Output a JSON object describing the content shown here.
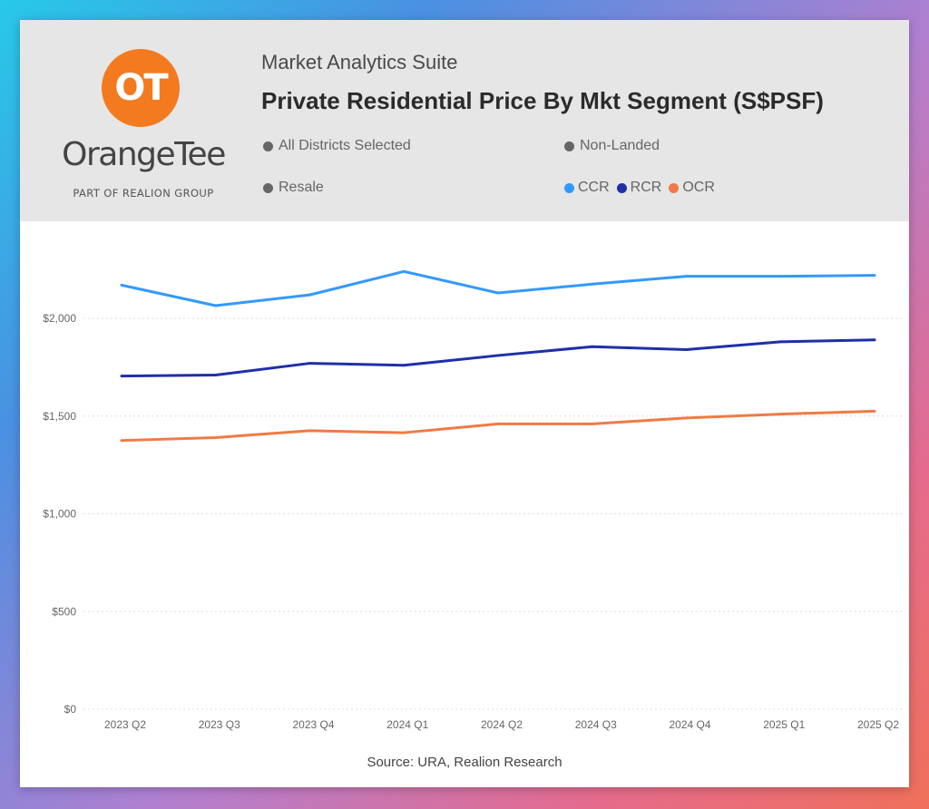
{
  "logo": {
    "monogram": "OT",
    "brand": "OrangeTee",
    "tagline": "PART OF REALION GROUP"
  },
  "header": {
    "suite": "Market Analytics Suite",
    "title": "Private Residential Price By Mkt Segment (S$PSF)"
  },
  "filters": {
    "districts": "All Districts Selected",
    "property_type": "Non-Landed",
    "sale_type": "Resale"
  },
  "colors": {
    "ccr": "#3399ff",
    "rcr": "#1f2fa8",
    "ocr": "#f07a45",
    "grid": "#dddddd"
  },
  "chart_data": {
    "type": "line",
    "title": "Private Residential Price By Mkt Segment (S$PSF)",
    "categories": [
      "2023 Q2",
      "2023 Q3",
      "2023 Q4",
      "2024 Q1",
      "2024 Q2",
      "2024 Q3",
      "2024 Q4",
      "2025 Q1",
      "2025 Q2"
    ],
    "series": [
      {
        "name": "CCR",
        "color": "#3399ff",
        "values": [
          2170,
          2065,
          2120,
          2240,
          2130,
          2175,
          2215,
          2215,
          2220
        ]
      },
      {
        "name": "RCR",
        "color": "#1f2fa8",
        "values": [
          1705,
          1710,
          1770,
          1760,
          1810,
          1855,
          1840,
          1880,
          1890
        ]
      },
      {
        "name": "OCR",
        "color": "#f07a45",
        "values": [
          1375,
          1390,
          1425,
          1415,
          1460,
          1460,
          1490,
          1510,
          1525
        ]
      }
    ],
    "yticks": [
      0,
      500,
      1000,
      1500,
      2000
    ],
    "ytick_labels": [
      "$0",
      "$500",
      "$1,000",
      "$1,500",
      "$2,000"
    ],
    "ylim": [
      0,
      2500
    ],
    "xlabel": "",
    "ylabel": "",
    "grid": true,
    "legend": "top-right"
  },
  "source": "Source: URA, Realion Research"
}
